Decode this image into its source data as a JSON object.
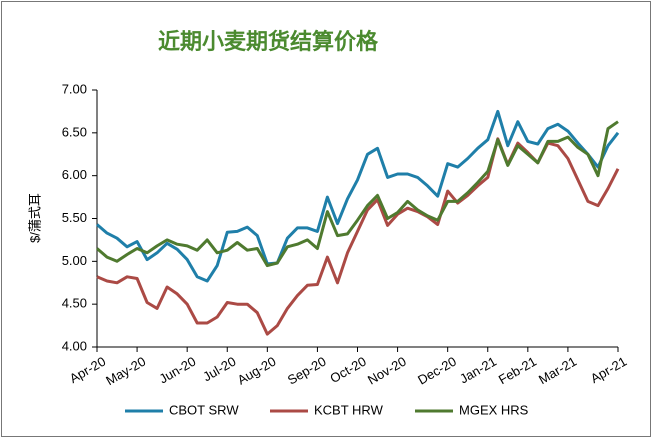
{
  "chart_data": {
    "type": "line",
    "title": "近期小麦期货结算价格",
    "y_label": "$/蒲式耳",
    "categories": [
      "Apr-20",
      null,
      null,
      null,
      "May-20",
      null,
      null,
      null,
      null,
      "Jun-20",
      null,
      null,
      null,
      "Jul-20",
      null,
      null,
      null,
      "Aug-20",
      null,
      null,
      null,
      null,
      "Sep-20",
      null,
      null,
      null,
      "Oct-20",
      null,
      null,
      null,
      "Nov-20",
      null,
      null,
      null,
      null,
      "Dec-20",
      null,
      null,
      null,
      "Jan-21",
      null,
      null,
      null,
      "Feb-21",
      null,
      null,
      null,
      "Mar-21",
      null,
      null,
      null,
      null,
      "Apr-21"
    ],
    "series": [
      {
        "name": "CBOT SRW",
        "color": "#1f7fa9",
        "values": [
          5.43,
          5.33,
          5.27,
          5.17,
          5.23,
          5.02,
          5.1,
          5.21,
          5.14,
          5.02,
          4.82,
          4.77,
          4.95,
          5.34,
          5.35,
          5.4,
          5.3,
          4.97,
          4.98,
          5.27,
          5.39,
          5.39,
          5.35,
          5.75,
          5.44,
          5.73,
          5.95,
          6.25,
          6.32,
          5.98,
          6.02,
          6.02,
          5.98,
          5.88,
          5.76,
          6.14,
          6.1,
          6.2,
          6.32,
          6.42,
          6.75,
          6.35,
          6.63,
          6.4,
          6.37,
          6.55,
          6.6,
          6.52,
          6.38,
          6.25,
          6.1,
          6.35,
          6.5
        ]
      },
      {
        "name": "KCBT HRW",
        "color": "#ab4a45",
        "values": [
          4.82,
          4.77,
          4.75,
          4.82,
          4.8,
          4.52,
          4.45,
          4.7,
          4.62,
          4.5,
          4.28,
          4.28,
          4.35,
          4.52,
          4.5,
          4.5,
          4.4,
          4.15,
          4.25,
          4.45,
          4.6,
          4.72,
          4.73,
          5.05,
          4.75,
          5.1,
          5.35,
          5.6,
          5.72,
          5.42,
          5.55,
          5.62,
          5.58,
          5.52,
          5.43,
          5.82,
          5.68,
          5.77,
          5.88,
          5.98,
          6.43,
          6.13,
          6.38,
          6.27,
          6.15,
          6.38,
          6.35,
          6.2,
          5.95,
          5.7,
          5.65,
          5.85,
          6.08
        ]
      },
      {
        "name": "MGEX HRS",
        "color": "#4f7a2f",
        "values": [
          5.15,
          5.05,
          5.0,
          5.08,
          5.15,
          5.1,
          5.18,
          5.25,
          5.2,
          5.18,
          5.13,
          5.25,
          5.1,
          5.13,
          5.22,
          5.13,
          5.15,
          4.95,
          4.98,
          5.17,
          5.2,
          5.25,
          5.15,
          5.58,
          5.3,
          5.32,
          5.48,
          5.65,
          5.77,
          5.5,
          5.57,
          5.7,
          5.6,
          5.53,
          5.48,
          5.7,
          5.7,
          5.8,
          5.92,
          6.05,
          6.42,
          6.12,
          6.35,
          6.25,
          6.15,
          6.4,
          6.4,
          6.45,
          6.33,
          6.25,
          6.0,
          6.55,
          6.63
        ]
      }
    ],
    "ylim": [
      4,
      7
    ],
    "yticks": [
      {
        "value": 4,
        "label": "4.00"
      },
      {
        "value": 4.5,
        "label": "4.50"
      },
      {
        "value": 5,
        "label": "5.00"
      },
      {
        "value": 5.5,
        "label": "5.50"
      },
      {
        "value": 6,
        "label": "6.00"
      },
      {
        "value": 6.5,
        "label": "6.50"
      },
      {
        "value": 7,
        "label": "7.00"
      }
    ],
    "grid": false,
    "legend": "bottom"
  }
}
